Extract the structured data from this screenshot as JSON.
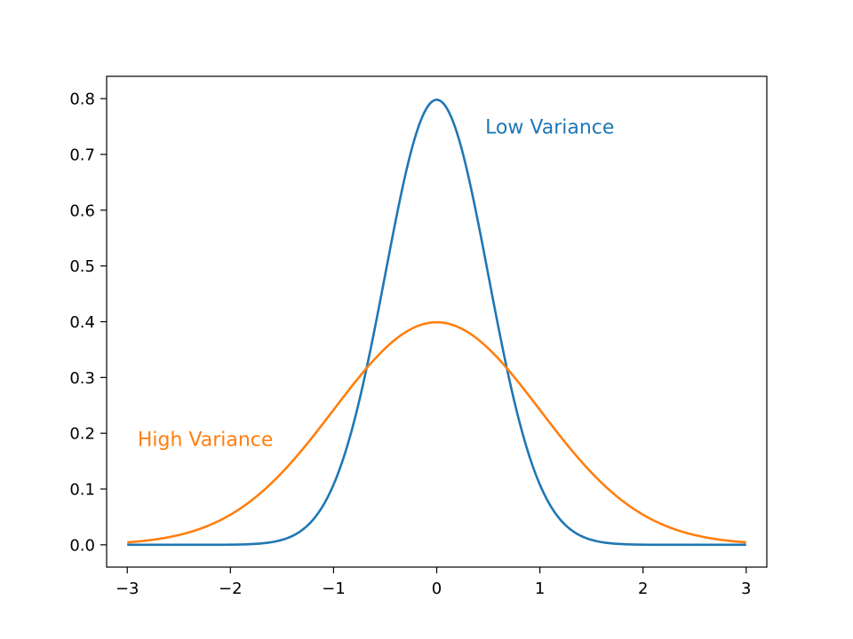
{
  "chart_data": {
    "type": "line",
    "title": "",
    "xlabel": "",
    "ylabel": "",
    "xlim": [
      -3.2,
      3.2
    ],
    "ylim": [
      -0.04,
      0.84
    ],
    "grid": false,
    "legend": "none",
    "xticks": [
      -3,
      -2,
      -1,
      0,
      1,
      2,
      3
    ],
    "xtick_labels": [
      "−3",
      "−2",
      "−1",
      "0",
      "1",
      "2",
      "3"
    ],
    "yticks": [
      0.0,
      0.1,
      0.2,
      0.3,
      0.4,
      0.5,
      0.6,
      0.7,
      0.8
    ],
    "ytick_labels": [
      "0.0",
      "0.1",
      "0.2",
      "0.3",
      "0.4",
      "0.5",
      "0.6",
      "0.7",
      "0.8"
    ],
    "x_domain": [
      -3,
      3
    ],
    "series": [
      {
        "color": "#1f77b4",
        "x": [
          -3.0,
          -2.5,
          -2.0,
          -1.75,
          -1.5,
          -1.25,
          -1.0,
          -0.75,
          -0.5,
          -0.25,
          0.0,
          0.25,
          0.5,
          0.75,
          1.0,
          1.25,
          1.5,
          1.75,
          2.0,
          2.5,
          3.0
        ],
        "y": [
          0.0,
          0.0,
          0.0003,
          0.0018,
          0.0089,
          0.035,
          0.108,
          0.259,
          0.484,
          0.704,
          0.798,
          0.704,
          0.484,
          0.259,
          0.108,
          0.035,
          0.0089,
          0.0018,
          0.0003,
          0.0,
          0.0
        ]
      },
      {
        "color": "#ff7f0e",
        "x": [
          -3.0,
          -2.5,
          -2.0,
          -1.75,
          -1.5,
          -1.25,
          -1.0,
          -0.75,
          -0.5,
          -0.25,
          0.0,
          0.25,
          0.5,
          0.75,
          1.0,
          1.25,
          1.5,
          1.75,
          2.0,
          2.5,
          3.0
        ],
        "y": [
          0.0044,
          0.0175,
          0.054,
          0.086,
          0.1295,
          0.1826,
          0.242,
          0.301,
          0.352,
          0.387,
          0.399,
          0.387,
          0.352,
          0.301,
          0.242,
          0.1826,
          0.1295,
          0.086,
          0.054,
          0.0175,
          0.0044
        ]
      }
    ],
    "annotations": [
      {
        "text": "Low Variance",
        "x": 0.47,
        "y": 0.75,
        "color": "#1f77b4"
      },
      {
        "text": "High Variance",
        "x": -2.9,
        "y": 0.19,
        "color": "#ff7f0e"
      }
    ]
  }
}
